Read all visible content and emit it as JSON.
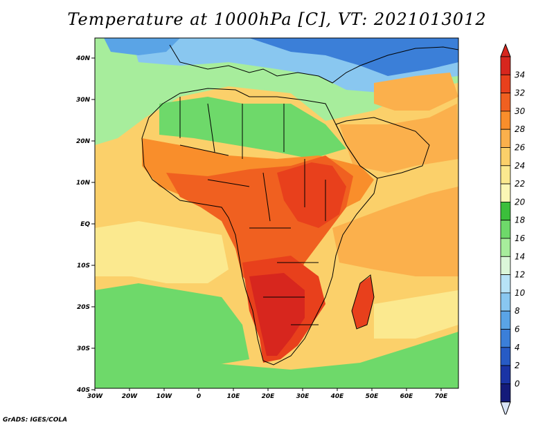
{
  "title": "Temperature at 1000hPa [C], VT: 2021013012",
  "credit": "GrADS: IGES/COLA",
  "map": {
    "lat_ticks": [
      "40N",
      "30N",
      "20N",
      "10N",
      "EQ",
      "10S",
      "20S",
      "30S",
      "40S"
    ],
    "lon_ticks": [
      "30W",
      "20W",
      "10W",
      "0",
      "10E",
      "20E",
      "30E",
      "40E",
      "50E",
      "60E",
      "70E"
    ],
    "lon_range": [
      -30,
      75
    ],
    "lat_range": [
      -40,
      45
    ]
  },
  "colorbar": {
    "labels": [
      "34",
      "32",
      "30",
      "28",
      "26",
      "24",
      "22",
      "20",
      "18",
      "16",
      "14",
      "12",
      "10",
      "8",
      "6",
      "4",
      "2",
      "0"
    ],
    "colors": [
      "#d7261e",
      "#e8401c",
      "#f06020",
      "#f98e2b",
      "#fbb04c",
      "#fbd06a",
      "#fbe98f",
      "#fbf7b5",
      "#3bbf3b",
      "#6ed96a",
      "#a7ed9c",
      "#dbf7d9",
      "#b7e3f7",
      "#89c7f0",
      "#5aa4e6",
      "#3b7fd8",
      "#275bc5",
      "#1a34a5",
      "#141b7a"
    ],
    "top_color": "#d7261e",
    "bottom_color": "#d9e4f7"
  }
}
